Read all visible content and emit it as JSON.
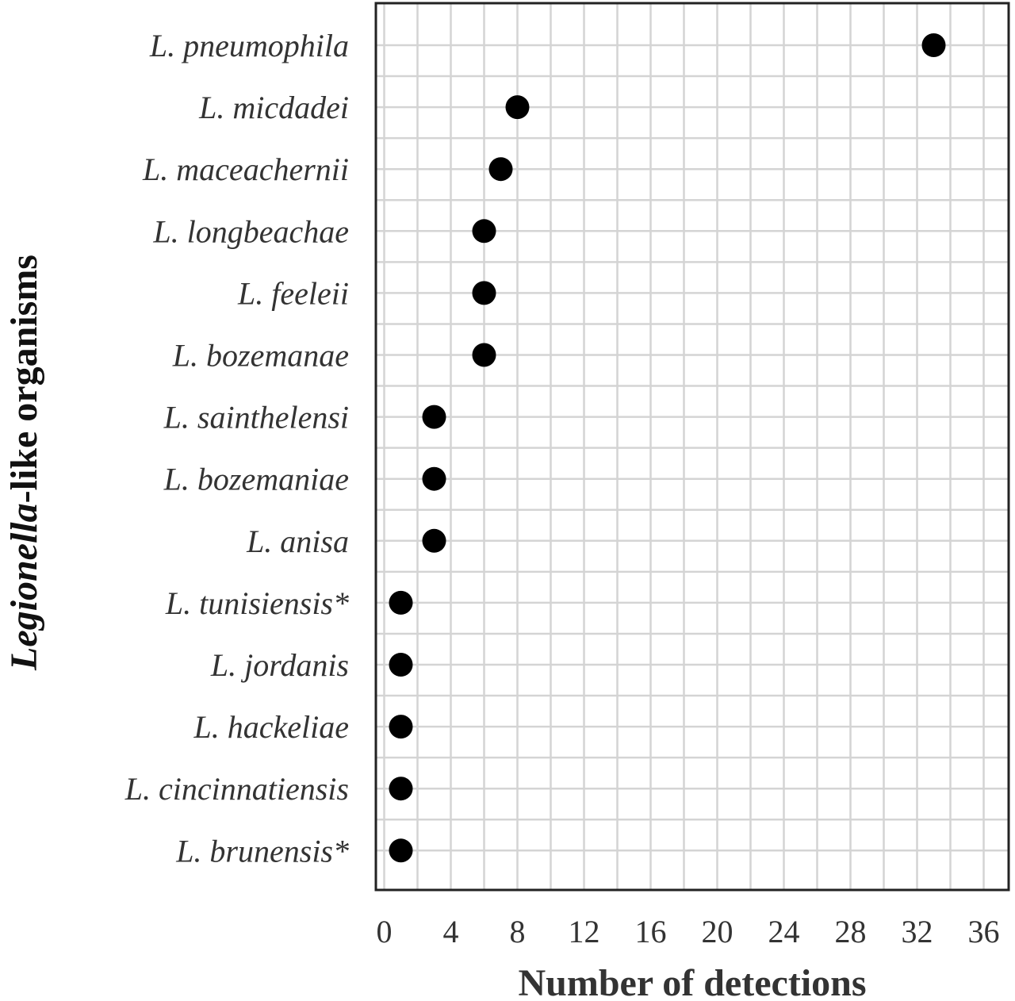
{
  "chart_data": {
    "type": "scatter",
    "title": "",
    "xlabel": "Number of detections",
    "ylabel": {
      "italic_part": "Legionella",
      "rest": "-like organisms"
    },
    "xlim": [
      -0.5,
      37.5
    ],
    "xticks": [
      0,
      4,
      8,
      12,
      16,
      20,
      24,
      28,
      32,
      36
    ],
    "grid": true,
    "legend": "none",
    "point_color": "#000000",
    "categories": [
      "L. pneumophila",
      "L. micdadei",
      "L. maceachernii",
      "L. longbeachae",
      "L. feeleii",
      "L. bozemanae",
      "L. sainthelensi",
      "L. bozemaniae",
      "L. anisa",
      "L. tunisiensis*",
      "L. jordanis",
      "L. hackeliae",
      "L. cincinnatiensis",
      "L. brunensis*"
    ],
    "values": [
      33,
      8,
      7,
      6,
      6,
      6,
      3,
      3,
      3,
      1,
      1,
      1,
      1,
      1
    ]
  }
}
